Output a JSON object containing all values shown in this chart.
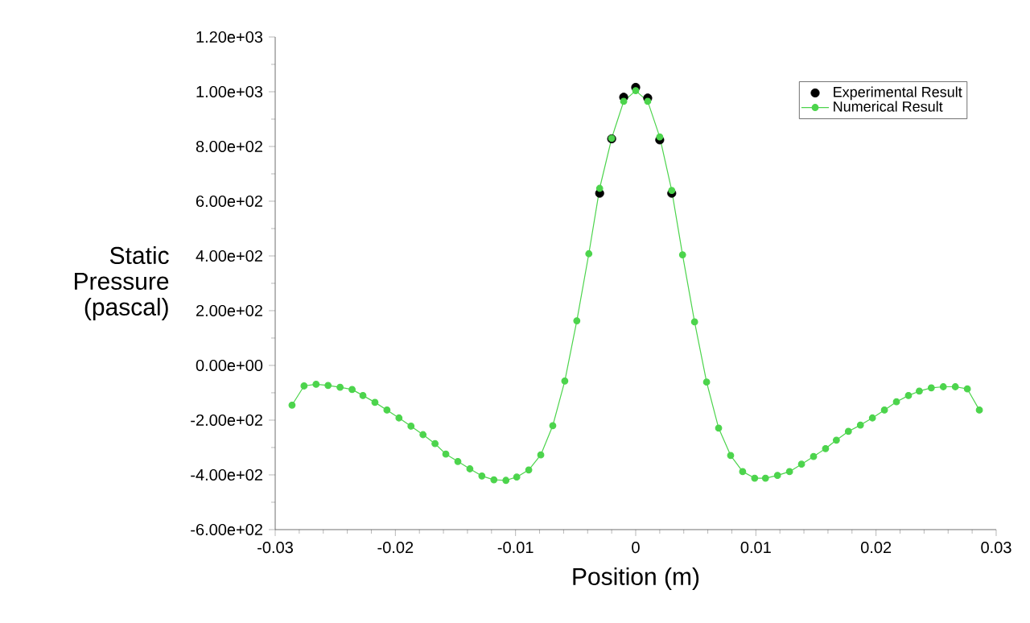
{
  "chart_data": {
    "type": "line",
    "xlabel": "Position (m)",
    "ylabel": "Static Pressure (pascal)",
    "xlim": [
      -0.03,
      0.03
    ],
    "ylim": [
      -600,
      1200
    ],
    "xticks": [
      -0.03,
      -0.02,
      -0.01,
      0,
      0.01,
      0.02,
      0.03
    ],
    "yticks": [
      {
        "value": -600,
        "label": "-6.00e+02"
      },
      {
        "value": -400,
        "label": "-4.00e+02"
      },
      {
        "value": -200,
        "label": "-2.00e+02"
      },
      {
        "value": 0,
        "label": "0.00e+00"
      },
      {
        "value": 200,
        "label": "2.00e+02"
      },
      {
        "value": 400,
        "label": "4.00e+02"
      },
      {
        "value": 600,
        "label": "6.00e+02"
      },
      {
        "value": 800,
        "label": "8.00e+02"
      },
      {
        "value": 1000,
        "label": "1.00e+03"
      },
      {
        "value": 1200,
        "label": "1.20e+03"
      }
    ],
    "grid": false,
    "legend": "top right",
    "marker": "circle",
    "series": [
      {
        "name": "Experimental Result",
        "type": "scatter",
        "color": "#000000",
        "x": [
          -0.003,
          -0.002,
          -0.001,
          0,
          0.001,
          0.002,
          0.003
        ],
        "values": [
          629,
          828,
          980,
          1016,
          977,
          824,
          629
        ]
      },
      {
        "name": "Numerical Result",
        "color": "#4cd44c",
        "x": [
          -0.0286,
          -0.0276,
          -0.0266,
          -0.0256,
          -0.0246,
          -0.0236,
          -0.0227,
          -0.0217,
          -0.0207,
          -0.0197,
          -0.0187,
          -0.0177,
          -0.0167,
          -0.0158,
          -0.0148,
          -0.0138,
          -0.0128,
          -0.0118,
          -0.0108,
          -0.0099,
          -0.0089,
          -0.0079,
          -0.0069,
          -0.0059,
          -0.0049,
          -0.0039,
          -0.003,
          -0.002,
          -0.001,
          0,
          0.001,
          0.002,
          0.003,
          0.0039,
          0.0049,
          0.0059,
          0.0069,
          0.0079,
          0.0089,
          0.0099,
          0.0108,
          0.0118,
          0.0128,
          0.0138,
          0.0148,
          0.0158,
          0.0167,
          0.0177,
          0.0187,
          0.0197,
          0.0207,
          0.0217,
          0.0227,
          0.0236,
          0.0246,
          0.0256,
          0.0266,
          0.0276,
          0.0286
        ],
        "values": [
          -145,
          -75,
          -69,
          -73,
          -80,
          -88,
          -110,
          -135,
          -163,
          -192,
          -222,
          -253,
          -286,
          -324,
          -351,
          -378,
          -404,
          -418,
          -420,
          -408,
          -382,
          -327,
          -220,
          -57,
          163,
          408,
          647,
          830,
          965,
          1004,
          965,
          835,
          639,
          404,
          159,
          -61,
          -229,
          -329,
          -388,
          -412,
          -412,
          -402,
          -388,
          -361,
          -333,
          -304,
          -273,
          -241,
          -218,
          -192,
          -163,
          -133,
          -110,
          -94,
          -82,
          -78,
          -78,
          -86,
          -163
        ]
      }
    ]
  }
}
